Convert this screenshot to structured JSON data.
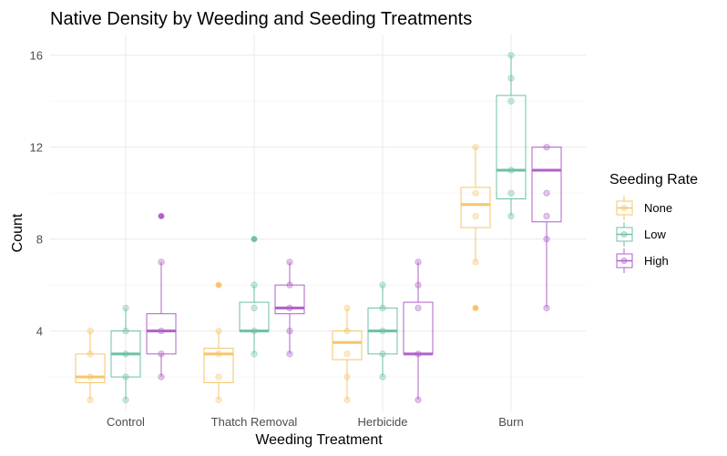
{
  "chart_data": {
    "type": "box",
    "title": "Native Density by Weeding and Seeding Treatments",
    "xlabel": "Weeding Treatment",
    "ylabel": "Count",
    "categories": [
      "Control",
      "Thatch Removal",
      "Herbicide",
      "Burn"
    ],
    "ylim": [
      0.5,
      16.9
    ],
    "yticks": [
      4,
      8,
      12,
      16
    ],
    "grid": true,
    "legend": {
      "title": "Seeding Rate",
      "placement": "right"
    },
    "series": [
      {
        "name": "None",
        "color": "#f6c66b",
        "boxes": [
          {
            "category": "Control",
            "min": 1,
            "q1": 1.75,
            "median": 2,
            "q3": 3,
            "max": 4,
            "outliers": []
          },
          {
            "category": "Thatch Removal",
            "min": 1,
            "q1": 1.75,
            "median": 3,
            "q3": 3.25,
            "max": 4,
            "outliers": [
              6
            ]
          },
          {
            "category": "Herbicide",
            "min": 1,
            "q1": 2.75,
            "median": 3.5,
            "q3": 4,
            "max": 5,
            "outliers": []
          },
          {
            "category": "Burn",
            "min": 7,
            "q1": 8.5,
            "median": 9.5,
            "q3": 10.25,
            "max": 12,
            "outliers": [
              5
            ]
          }
        ],
        "points": [
          {
            "category": "Control",
            "values": [
              1,
              2,
              3,
              4
            ]
          },
          {
            "category": "Thatch Removal",
            "values": [
              1,
              2,
              3,
              4,
              6
            ]
          },
          {
            "category": "Herbicide",
            "values": [
              1,
              2,
              3,
              4,
              5
            ]
          },
          {
            "category": "Burn",
            "values": [
              5,
              7,
              9,
              10,
              12
            ]
          }
        ]
      },
      {
        "name": "Low",
        "color": "#6cc0a8",
        "boxes": [
          {
            "category": "Control",
            "min": 1,
            "q1": 2,
            "median": 3,
            "q3": 4,
            "max": 5,
            "outliers": []
          },
          {
            "category": "Thatch Removal",
            "min": 3,
            "q1": 4,
            "median": 4,
            "q3": 5.25,
            "max": 6,
            "outliers": [
              8
            ]
          },
          {
            "category": "Herbicide",
            "min": 2,
            "q1": 3,
            "median": 4,
            "q3": 5,
            "max": 6,
            "outliers": []
          },
          {
            "category": "Burn",
            "min": 9,
            "q1": 9.75,
            "median": 11,
            "q3": 14.25,
            "max": 16,
            "outliers": []
          }
        ],
        "points": [
          {
            "category": "Control",
            "values": [
              1,
              2,
              3,
              4,
              5
            ]
          },
          {
            "category": "Thatch Removal",
            "values": [
              3,
              4,
              5,
              6,
              8
            ]
          },
          {
            "category": "Herbicide",
            "values": [
              2,
              3,
              4,
              5,
              6
            ]
          },
          {
            "category": "Burn",
            "values": [
              9,
              10,
              11,
              14,
              15,
              16
            ]
          }
        ]
      },
      {
        "name": "High",
        "color": "#b060c8",
        "boxes": [
          {
            "category": "Control",
            "min": 2,
            "q1": 3,
            "median": 4,
            "q3": 4.75,
            "max": 7,
            "outliers": [
              9
            ]
          },
          {
            "category": "Thatch Removal",
            "min": 3,
            "q1": 4.75,
            "median": 5,
            "q3": 6,
            "max": 7,
            "outliers": []
          },
          {
            "category": "Herbicide",
            "min": 1,
            "q1": 3,
            "median": 3,
            "q3": 5.25,
            "max": 7,
            "outliers": []
          },
          {
            "category": "Burn",
            "min": 5,
            "q1": 8.75,
            "median": 11,
            "q3": 12,
            "max": 12,
            "outliers": []
          }
        ],
        "points": [
          {
            "category": "Control",
            "values": [
              2,
              3,
              4,
              7,
              9
            ]
          },
          {
            "category": "Thatch Removal",
            "values": [
              3,
              4,
              5,
              6,
              7
            ]
          },
          {
            "category": "Herbicide",
            "values": [
              1,
              3,
              5,
              6,
              7
            ]
          },
          {
            "category": "Burn",
            "values": [
              5,
              8,
              9,
              10,
              12
            ]
          }
        ]
      }
    ]
  }
}
